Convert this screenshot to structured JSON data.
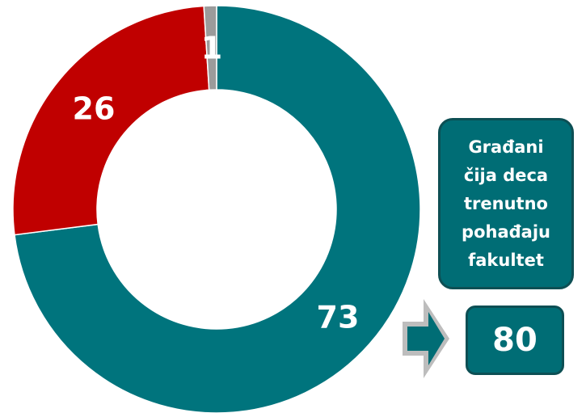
{
  "chart_data": {
    "type": "pie",
    "variant": "donut",
    "slices": [
      {
        "value": 73,
        "label": "73",
        "color": "#00747d"
      },
      {
        "value": 26,
        "label": "26",
        "color": "#c00000"
      },
      {
        "value": 1,
        "label": "1",
        "color": "#9b9b9b"
      }
    ]
  },
  "callout": {
    "text": "Građani čija deca trenutno pohađaju fakultet",
    "value": "80",
    "box_color": "#006d75",
    "arrow_icon": "right-arrow-icon"
  }
}
